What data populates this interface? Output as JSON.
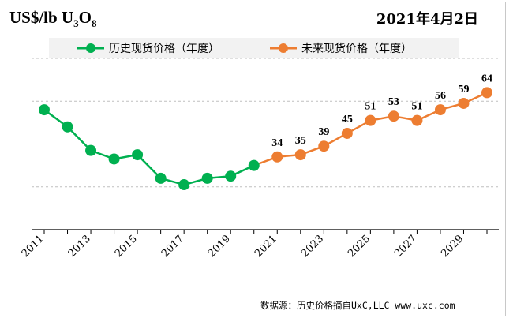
{
  "header": {
    "unit_prefix": "US$/lb U",
    "unit_sub1": "3",
    "unit_mid": "O",
    "unit_sub2": "8",
    "date": "2021年4月2日"
  },
  "legend": {
    "historical": "历史现货价格（年度）",
    "future": "未来现货价格（年度）"
  },
  "source": "数据源：历史价格摘自UxC,LLC  www.uxc.com",
  "colors": {
    "historical": "#00b050",
    "future": "#ed7d31",
    "grid": "#bfbfbf"
  },
  "chart_data": {
    "type": "line",
    "title": "",
    "xlabel": "",
    "ylabel": "US$/lb U3O8",
    "x_tick_labels": [
      "2011",
      "2013",
      "2015",
      "2017",
      "2019",
      "2021",
      "2023",
      "2025",
      "2027",
      "2029"
    ],
    "ylim": [
      0,
      80
    ],
    "grid": "horizontal dashed",
    "legend_position": "top",
    "series": [
      {
        "name": "历史现货价格（年度）",
        "x": [
          2011,
          2012,
          2013,
          2014,
          2015,
          2016,
          2017,
          2018,
          2019,
          2020
        ],
        "values": [
          56,
          48,
          37,
          33,
          35,
          24,
          21,
          24,
          25,
          30
        ]
      },
      {
        "name": "未来现货价格（年度）",
        "x": [
          2020,
          2021,
          2022,
          2023,
          2024,
          2025,
          2026,
          2027,
          2028,
          2029,
          2030
        ],
        "values": [
          30,
          34,
          35,
          39,
          45,
          51,
          53,
          51,
          56,
          59,
          64
        ],
        "labels": [
          "",
          "34",
          "35",
          "39",
          "45",
          "51",
          "53",
          "51",
          "56",
          "59",
          "64"
        ]
      }
    ]
  }
}
